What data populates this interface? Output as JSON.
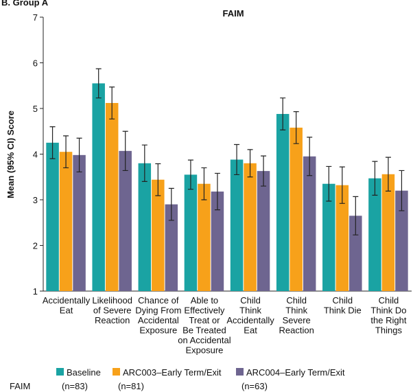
{
  "chart_data": {
    "type": "bar",
    "panel_label": "B. Group A",
    "title": "FAIM",
    "y_label": "Mean (95% CI) Score",
    "categories": [
      "Accidentally\nEat",
      "Likelihood\nof Severe\nReaction",
      "Chance of\nDying From\nAccidental\nExposure",
      "Able to\nEffectively\nTreat or\nBe Treated\non Accidental\nExposure",
      "Child\nThink\nAccidentally\nEat",
      "Child\nThink\nSevere\nReaction",
      "Child\nThink Die",
      "Child\nThink Do\nthe Right\nThings"
    ],
    "series": [
      {
        "name": "Baseline",
        "n": "(n=83)",
        "color": "#1aa3a3",
        "values": [
          4.25,
          5.55,
          3.8,
          3.55,
          3.88,
          4.88,
          3.35,
          3.47
        ],
        "errors": [
          0.35,
          0.32,
          0.4,
          0.32,
          0.33,
          0.35,
          0.38,
          0.37
        ]
      },
      {
        "name": "ARC003–Early Term/Exit",
        "n": "(n=81)",
        "color": "#f7a11a",
        "values": [
          4.05,
          5.12,
          3.44,
          3.35,
          3.8,
          4.58,
          3.32,
          3.56
        ],
        "errors": [
          0.35,
          0.35,
          0.35,
          0.35,
          0.3,
          0.35,
          0.4,
          0.37
        ]
      },
      {
        "name": "ARC004–Early Term/Exit",
        "n": "(n=63)",
        "color": "#6e6590",
        "values": [
          3.98,
          4.07,
          2.9,
          3.18,
          3.63,
          3.95,
          2.65,
          3.2
        ],
        "errors": [
          0.37,
          0.43,
          0.35,
          0.4,
          0.33,
          0.42,
          0.42,
          0.44
        ]
      }
    ],
    "legend_title": "FAIM",
    "ylim": [
      1,
      7
    ],
    "yticks": [
      1,
      2,
      3,
      4,
      5,
      6,
      7
    ],
    "grid": false
  }
}
